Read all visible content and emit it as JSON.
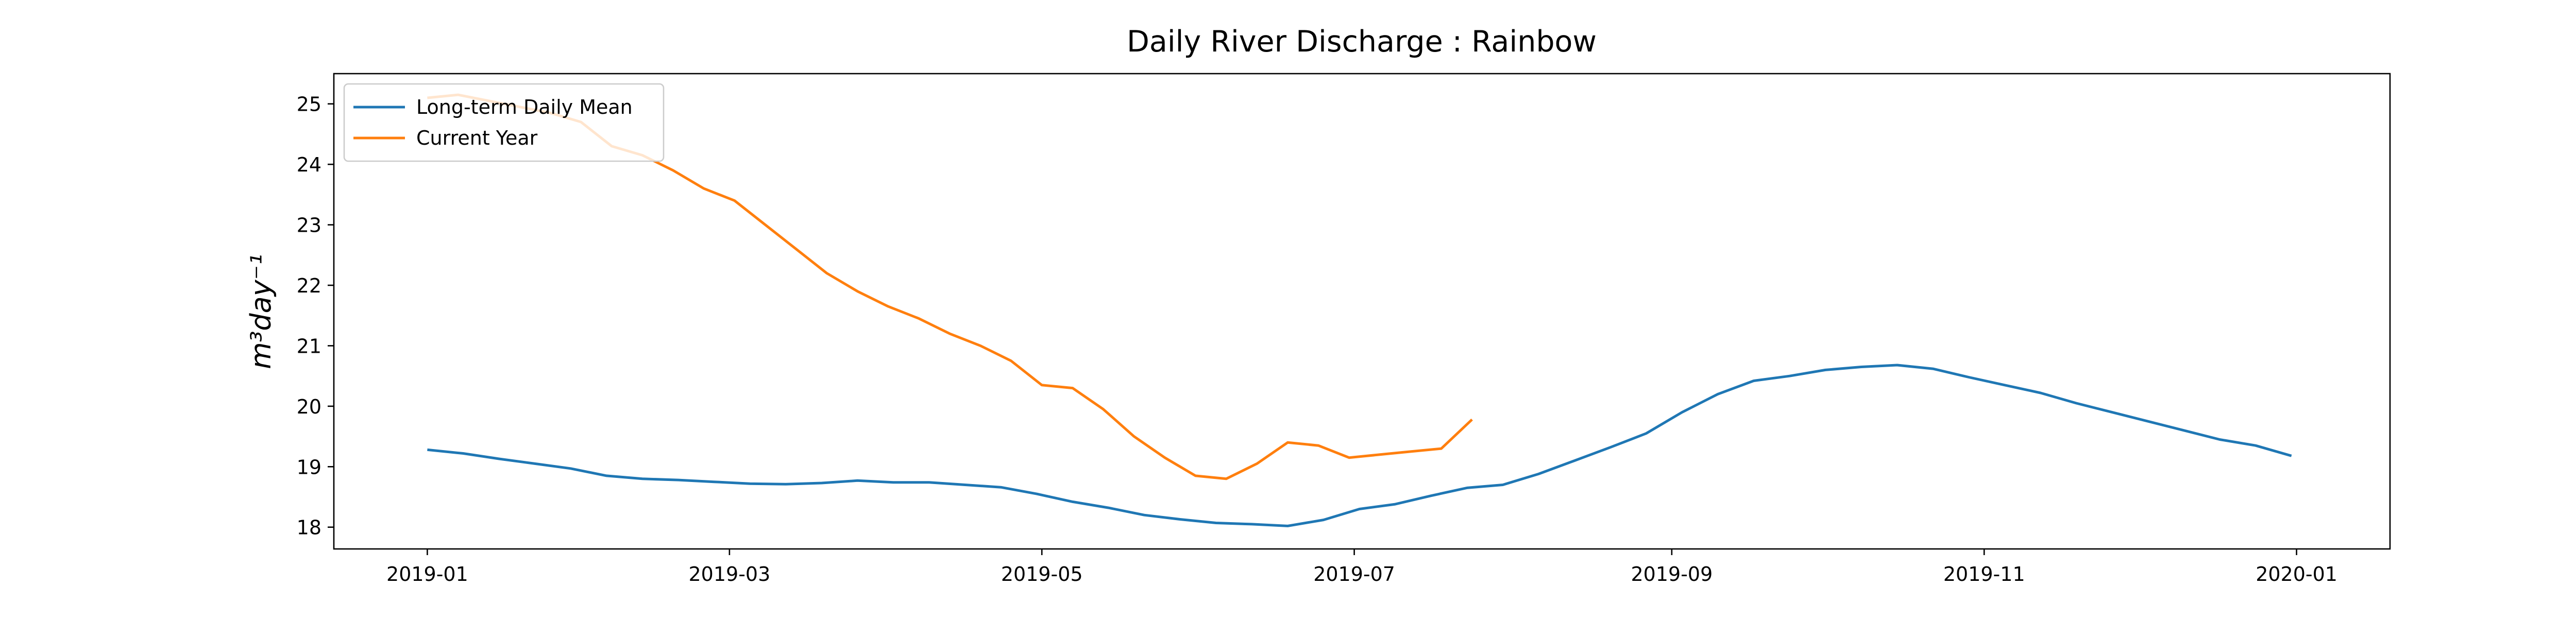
{
  "chart_data": {
    "type": "line",
    "title": "Daily River Discharge : Rainbow",
    "y_label": "m³day⁻¹",
    "legend": "upper left",
    "grid": false,
    "xlim": [
      -18.25,
      383.25
    ],
    "xticks": [
      {
        "value": 0,
        "label": "2019-01"
      },
      {
        "value": 59,
        "label": "2019-03"
      },
      {
        "value": 120,
        "label": "2019-05"
      },
      {
        "value": 181,
        "label": "2019-07"
      },
      {
        "value": 243,
        "label": "2019-09"
      },
      {
        "value": 304,
        "label": "2019-11"
      },
      {
        "value": 365,
        "label": "2020-01"
      }
    ],
    "ylim": [
      17.64,
      25.5
    ],
    "yticks": [
      18,
      19,
      20,
      21,
      22,
      23,
      24,
      25
    ],
    "series": [
      {
        "name": "Long-term Daily Mean",
        "color": "#1f77b4",
        "x": [
          0,
          7,
          14,
          21,
          28,
          35,
          42,
          49,
          56,
          63,
          70,
          77,
          84,
          91,
          98,
          105,
          112,
          119,
          126,
          133,
          140,
          147,
          154,
          161,
          168,
          175,
          182,
          189,
          196,
          203,
          210,
          217,
          224,
          231,
          238,
          245,
          252,
          259,
          266,
          273,
          280,
          287,
          294,
          301,
          308,
          315,
          322,
          329,
          336,
          343,
          350,
          357,
          364
        ],
        "values": [
          19.28,
          19.22,
          19.13,
          19.05,
          18.97,
          18.85,
          18.8,
          18.78,
          18.75,
          18.72,
          18.71,
          18.73,
          18.77,
          18.74,
          18.74,
          18.7,
          18.66,
          18.55,
          18.42,
          18.32,
          18.2,
          18.13,
          18.07,
          18.05,
          18.02,
          18.12,
          18.3,
          18.38,
          18.52,
          18.65,
          18.7,
          18.88,
          19.1,
          19.32,
          19.55,
          19.9,
          20.2,
          20.42,
          20.5,
          20.6,
          20.65,
          20.68,
          20.62,
          20.48,
          20.35,
          20.22,
          20.05,
          19.9,
          19.75,
          19.6,
          19.45,
          19.35,
          19.18
        ]
      },
      {
        "name": "Current Year",
        "color": "#ff7f0e",
        "x": [
          0,
          6,
          12,
          18,
          24,
          30,
          36,
          42,
          48,
          54,
          60,
          66,
          72,
          78,
          84,
          90,
          96,
          102,
          108,
          114,
          120,
          126,
          132,
          138,
          144,
          150,
          156,
          162,
          168,
          174,
          180,
          186,
          192,
          198,
          204
        ],
        "values": [
          25.1,
          25.15,
          25.05,
          24.95,
          24.85,
          24.7,
          24.3,
          24.15,
          23.9,
          23.6,
          23.4,
          23.0,
          22.6,
          22.2,
          21.9,
          21.65,
          21.45,
          21.2,
          21.0,
          20.75,
          20.35,
          20.3,
          19.95,
          19.5,
          19.15,
          18.85,
          18.8,
          19.05,
          19.4,
          19.35,
          19.15,
          19.2,
          19.25,
          19.3,
          19.78
        ]
      }
    ]
  }
}
